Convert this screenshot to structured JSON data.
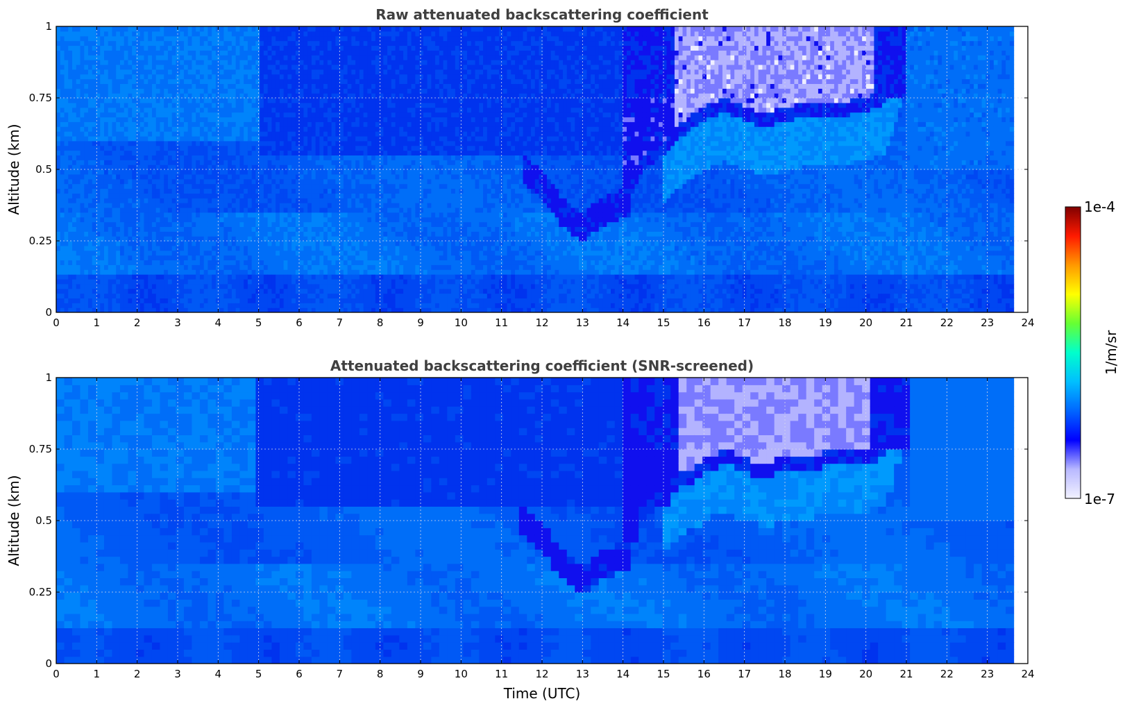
{
  "chart_data": [
    {
      "type": "heatmap",
      "title": "Raw attenuated backscattering coefficient",
      "xlabel": "",
      "ylabel": "Altitude (km)",
      "xlim": [
        0,
        24
      ],
      "ylim": [
        0,
        1
      ],
      "x_ticks": [
        "0",
        "1",
        "2",
        "3",
        "4",
        "5",
        "6",
        "7",
        "8",
        "9",
        "10",
        "11",
        "12",
        "13",
        "14",
        "15",
        "16",
        "17",
        "18",
        "19",
        "20",
        "21",
        "22",
        "23",
        "24"
      ],
      "y_ticks": [
        "0",
        "0.25",
        "0.5",
        "0.75",
        "1"
      ],
      "data_end_time": 23.65,
      "grid": true,
      "colorscale": "log",
      "cloud_top_profile": [
        [
          14.0,
          0.4
        ],
        [
          14.5,
          0.55
        ],
        [
          15.0,
          0.6
        ],
        [
          15.5,
          0.67
        ],
        [
          16.0,
          0.72
        ],
        [
          16.5,
          0.75
        ],
        [
          17.0,
          0.72
        ],
        [
          17.5,
          0.7
        ],
        [
          18.0,
          0.72
        ],
        [
          18.5,
          0.73
        ],
        [
          19.0,
          0.74
        ],
        [
          19.5,
          0.74
        ],
        [
          20.0,
          0.75
        ],
        [
          20.5,
          0.78
        ],
        [
          21.0,
          1.0
        ]
      ],
      "mixing_layer_top": [
        [
          11.5,
          0.5
        ],
        [
          12.0,
          0.45
        ],
        [
          12.5,
          0.35
        ],
        [
          13.0,
          0.3
        ],
        [
          13.5,
          0.35
        ],
        [
          14.0,
          0.38
        ]
      ]
    },
    {
      "type": "heatmap",
      "title": "Attenuated backscattering coefficient (SNR-screened)",
      "xlabel": "Time (UTC)",
      "ylabel": "Altitude (km)",
      "xlim": [
        0,
        24
      ],
      "ylim": [
        0,
        1
      ],
      "x_ticks": [
        "0",
        "1",
        "2",
        "3",
        "4",
        "5",
        "6",
        "7",
        "8",
        "9",
        "10",
        "11",
        "12",
        "13",
        "14",
        "15",
        "16",
        "17",
        "18",
        "19",
        "20",
        "21",
        "22",
        "23",
        "24"
      ],
      "y_ticks": [
        "0",
        "0.25",
        "0.5",
        "0.75",
        "1"
      ],
      "data_end_time": 23.65,
      "grid": true,
      "colorscale": "log",
      "cloud_top_profile": [
        [
          14.0,
          0.4
        ],
        [
          14.5,
          0.55
        ],
        [
          15.0,
          0.6
        ],
        [
          15.5,
          0.67
        ],
        [
          16.0,
          0.72
        ],
        [
          16.5,
          0.75
        ],
        [
          17.0,
          0.72
        ],
        [
          17.5,
          0.7
        ],
        [
          18.0,
          0.72
        ],
        [
          18.5,
          0.73
        ],
        [
          19.0,
          0.74
        ],
        [
          19.5,
          0.74
        ],
        [
          20.0,
          0.75
        ],
        [
          20.5,
          0.78
        ],
        [
          21.0,
          1.0
        ]
      ],
      "mixing_layer_top": [
        [
          11.5,
          0.5
        ],
        [
          12.0,
          0.45
        ],
        [
          12.5,
          0.35
        ],
        [
          13.0,
          0.3
        ],
        [
          13.5,
          0.35
        ],
        [
          14.0,
          0.38
        ]
      ]
    }
  ],
  "colorbar": {
    "max_label": "1e-4",
    "min_label": "1e-7",
    "unit_label": "1/m/sr",
    "stops": [
      "#f2f2ff",
      "#b8b8ff",
      "#0000ff",
      "#0066ff",
      "#00bfff",
      "#00ffcc",
      "#66ff33",
      "#ffff00",
      "#ff9900",
      "#ff1a00",
      "#800000"
    ]
  }
}
